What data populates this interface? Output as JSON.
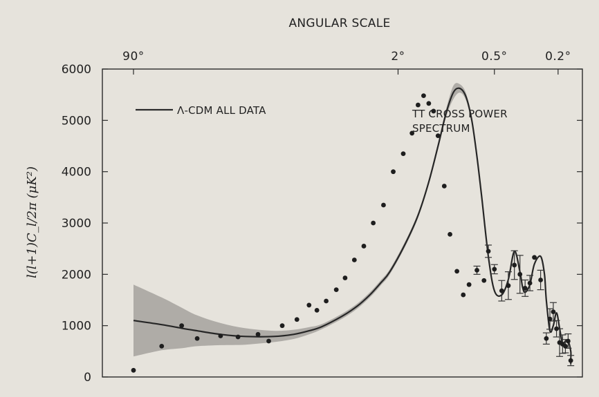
{
  "chart_data": {
    "type": "line",
    "title": "ANGULAR SCALE",
    "ylabel": "l(l+1)C_l/2π (μK²)",
    "xlabel": "",
    "x_scale": "log",
    "xlim": [
      2,
      1100
    ],
    "ylim": [
      0,
      6000
    ],
    "grid": false,
    "y_ticks": [
      0,
      1000,
      2000,
      3000,
      4000,
      5000,
      6000
    ],
    "top_ticks": [
      {
        "label": "90°",
        "x": 2
      },
      {
        "label": "2°",
        "x": 90
      },
      {
        "label": "0.5°",
        "x": 360
      },
      {
        "label": "0.2°",
        "x": 900
      }
    ],
    "legend": {
      "entry": "Λ-CDM ALL DATA",
      "position": "top-left"
    },
    "annotation": [
      "TT CROSS POWER",
      "SPECTRUM"
    ],
    "series": [
      {
        "name": "Λ-CDM ALL DATA",
        "kind": "model",
        "x": [
          2,
          3,
          4,
          5,
          7,
          10,
          15,
          20,
          25,
          30,
          40,
          50,
          60,
          70,
          80,
          100,
          120,
          140,
          160,
          180,
          200,
          220,
          240,
          260,
          280,
          300,
          330,
          360,
          400,
          440,
          480,
          520,
          540,
          560,
          600,
          640,
          700,
          740,
          760,
          800,
          840,
          880,
          920,
          960,
          1000,
          1040,
          1080,
          1120,
          1200
        ],
        "values": [
          1100,
          1020,
          950,
          900,
          830,
          790,
          790,
          830,
          900,
          980,
          1180,
          1380,
          1600,
          1830,
          2050,
          2600,
          3150,
          3800,
          4500,
          5150,
          5550,
          5620,
          5450,
          5000,
          4300,
          3500,
          2350,
          1680,
          1600,
          1900,
          2450,
          2050,
          1750,
          1650,
          1800,
          2200,
          2350,
          2000,
          1500,
          900,
          1000,
          1250,
          950,
          650,
          700,
          700,
          500,
          350,
          250
        ]
      },
      {
        "name": "",
        "kind": "uncertainty-band",
        "x": [
          2,
          3,
          4,
          5,
          7,
          10,
          15,
          20,
          25,
          30,
          40,
          50,
          60,
          70,
          80,
          100,
          120,
          140,
          160,
          180,
          200,
          220,
          240,
          260
        ],
        "upper": [
          1800,
          1550,
          1350,
          1200,
          1050,
          950,
          900,
          920,
          970,
          1030,
          1230,
          1430,
          1650,
          1880,
          2100,
          2650,
          3200,
          3850,
          4560,
          5230,
          5680,
          5700,
          5520,
          5050
        ],
        "lower": [
          400,
          520,
          560,
          600,
          620,
          630,
          680,
          740,
          830,
          930,
          1130,
          1330,
          1550,
          1780,
          2000,
          2550,
          3100,
          3750,
          4440,
          5070,
          5420,
          5540,
          5380,
          4950
        ]
      },
      {
        "name": "",
        "kind": "data",
        "x": [
          2,
          3,
          4,
          5,
          7,
          9,
          12,
          14,
          17,
          21,
          25,
          28,
          32,
          37,
          42,
          48,
          55,
          63,
          73,
          84,
          97,
          110,
          120,
          130,
          140,
          150,
          160,
          175,
          190,
          210,
          230,
          250,
          280,
          310,
          330,
          360,
          400,
          440,
          480,
          520,
          560,
          600,
          640,
          700,
          760,
          800,
          840,
          880,
          920,
          960,
          1000,
          1040,
          1100
        ],
        "values": [
          130,
          600,
          1000,
          750,
          800,
          780,
          830,
          700,
          1000,
          1120,
          1400,
          1300,
          1480,
          1700,
          1930,
          2280,
          2550,
          3000,
          3350,
          4000,
          4350,
          4750,
          5300,
          5480,
          5330,
          5180,
          4700,
          3720,
          2780,
          2060,
          1600,
          1800,
          2080,
          1880,
          2450,
          2100,
          1680,
          1780,
          2180,
          2000,
          1730,
          1830,
          2330,
          1890,
          750,
          1130,
          1270,
          940,
          670,
          640,
          600,
          700,
          320
        ],
        "err_hi": [
          0,
          0,
          0,
          0,
          0,
          0,
          0,
          0,
          0,
          0,
          0,
          0,
          0,
          0,
          0,
          0,
          0,
          0,
          0,
          0,
          0,
          0,
          0,
          0,
          0,
          0,
          0,
          0,
          0,
          0,
          0,
          0,
          80,
          0,
          120,
          90,
          200,
          270,
          280,
          370,
          160,
          150,
          0,
          190,
          110,
          200,
          180,
          160,
          270,
          180,
          130,
          140,
          100
        ],
        "err_lo": [
          0,
          0,
          0,
          0,
          0,
          0,
          0,
          0,
          0,
          0,
          0,
          0,
          0,
          0,
          0,
          0,
          0,
          0,
          0,
          0,
          0,
          0,
          0,
          0,
          0,
          0,
          0,
          0,
          0,
          0,
          0,
          0,
          80,
          0,
          120,
          90,
          200,
          270,
          280,
          370,
          160,
          150,
          0,
          190,
          110,
          200,
          180,
          160,
          270,
          180,
          130,
          140,
          100
        ]
      }
    ]
  }
}
